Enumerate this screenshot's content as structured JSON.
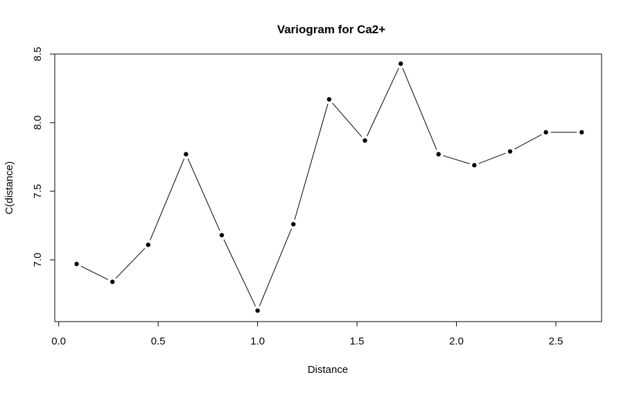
{
  "chart_data": {
    "type": "line",
    "title": "Variogram for Ca2+",
    "xlabel": "Distance",
    "ylabel": "C(distance)",
    "xlim": [
      -0.02,
      2.73
    ],
    "ylim": [
      6.55,
      8.5
    ],
    "x_ticks": [
      0.0,
      0.5,
      1.0,
      1.5,
      2.0,
      2.5
    ],
    "x_tick_labels": [
      "0.0",
      "0.5",
      "1.0",
      "1.5",
      "2.0",
      "2.5"
    ],
    "y_ticks": [
      7.0,
      7.5,
      8.0,
      8.5
    ],
    "y_tick_labels": [
      "7.0",
      "7.5",
      "8.0",
      "8.5"
    ],
    "grid": false,
    "legend": "none",
    "markers": true,
    "line_color": "#000000",
    "point_color": "#000000",
    "series": [
      {
        "x": [
          0.09,
          0.27,
          0.45,
          0.64,
          0.82,
          1.0,
          1.18,
          1.36,
          1.54,
          1.72,
          1.91,
          2.09,
          2.27,
          2.45,
          2.63
        ],
        "y": [
          6.97,
          6.84,
          7.11,
          7.77,
          7.18,
          6.63,
          7.26,
          8.17,
          7.87,
          8.43,
          7.77,
          7.69,
          7.79,
          7.93,
          7.93
        ]
      }
    ]
  }
}
